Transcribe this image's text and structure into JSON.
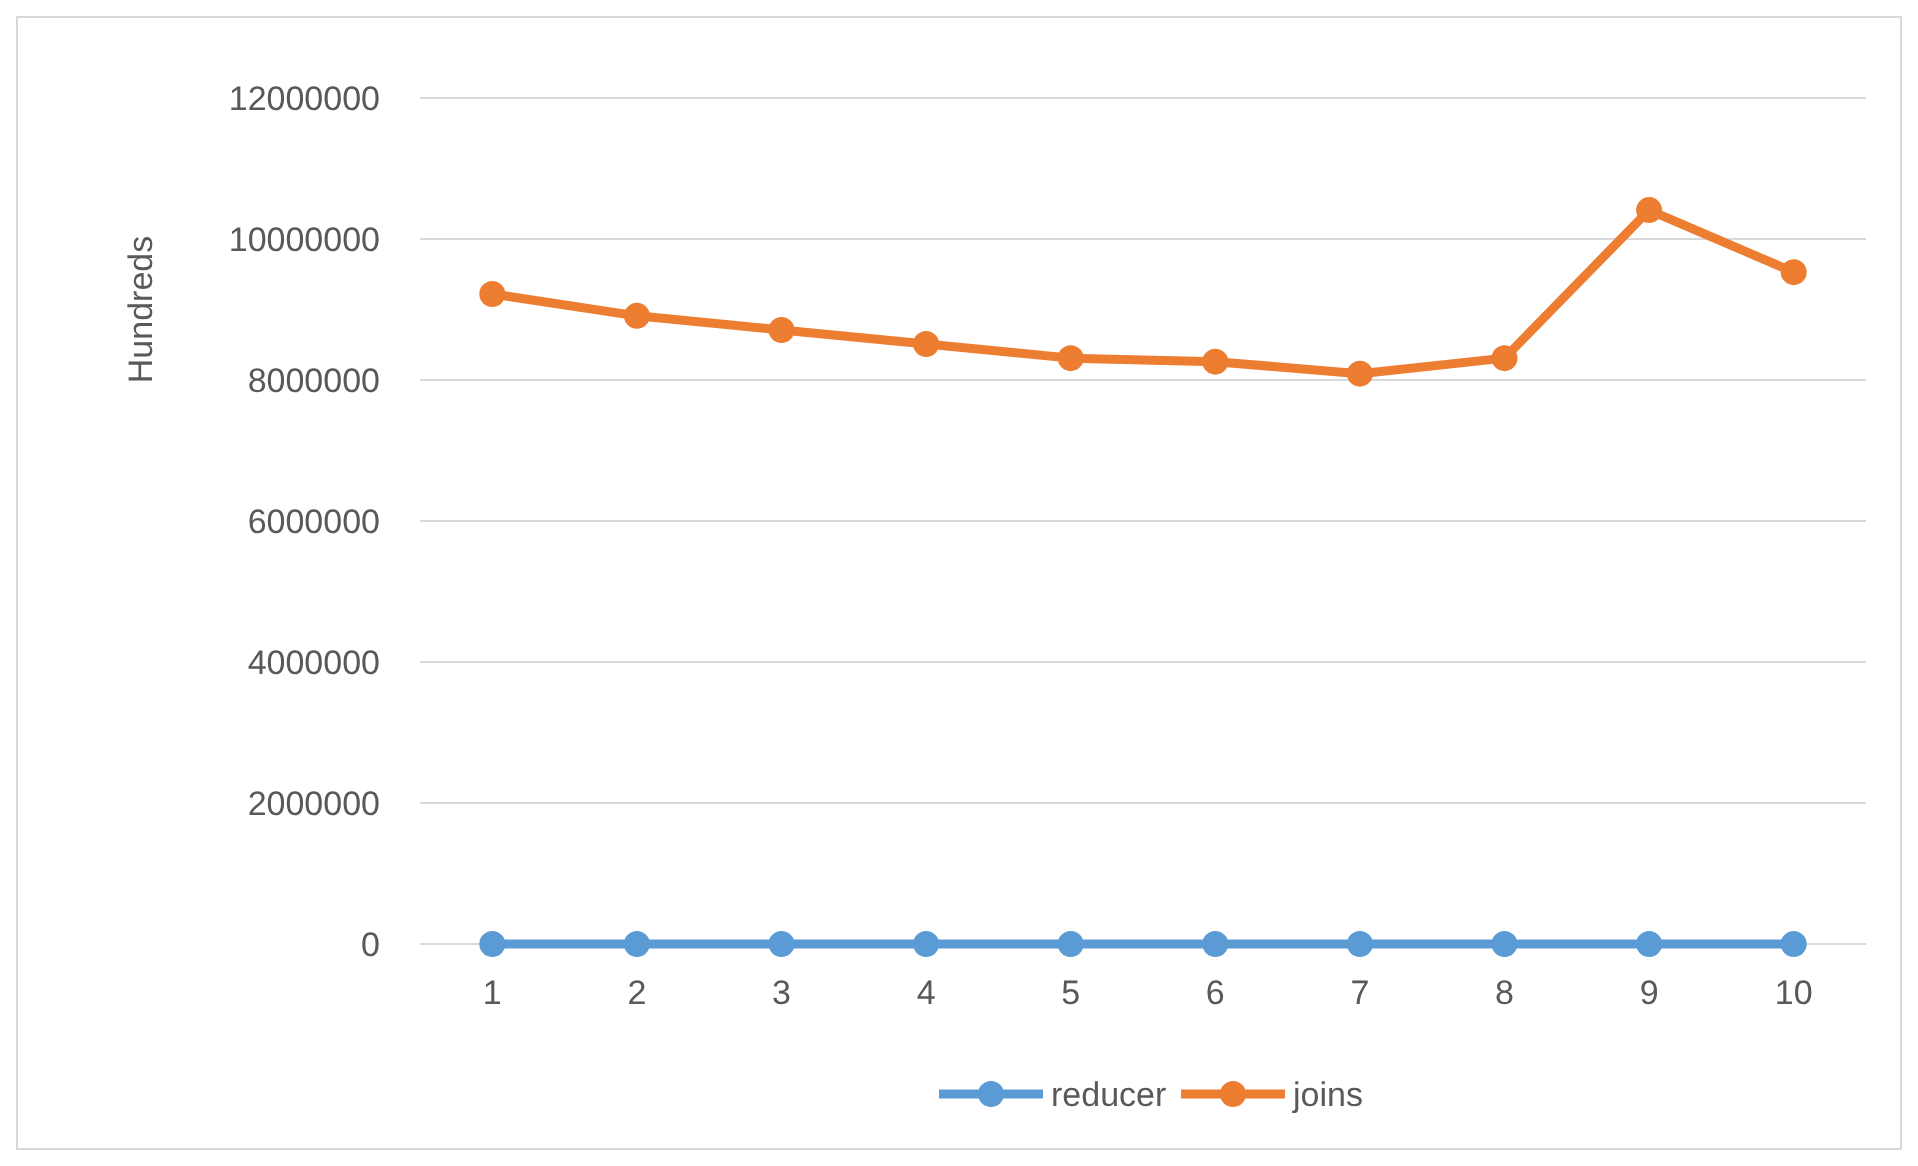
{
  "chart_data": {
    "type": "line",
    "ylabel": "Hundreds",
    "categories": [
      "1",
      "2",
      "3",
      "4",
      "5",
      "6",
      "7",
      "8",
      "9",
      "10"
    ],
    "series": [
      {
        "name": "reducer",
        "color": "#5b9bd5",
        "values": [
          0,
          0,
          0,
          0,
          0,
          0,
          0,
          0,
          0,
          0
        ]
      },
      {
        "name": "joins",
        "color": "#ed7d31",
        "values": [
          9220000,
          8910000,
          8710000,
          8510000,
          8310000,
          8260000,
          8090000,
          8310000,
          10410000,
          9530000
        ]
      }
    ],
    "ylim": [
      0,
      12000000
    ],
    "yticks": [
      0,
      2000000,
      4000000,
      6000000,
      8000000,
      10000000,
      12000000
    ],
    "grid": "y",
    "legend": "bottom",
    "marker": "circle",
    "line_style": "solid"
  }
}
